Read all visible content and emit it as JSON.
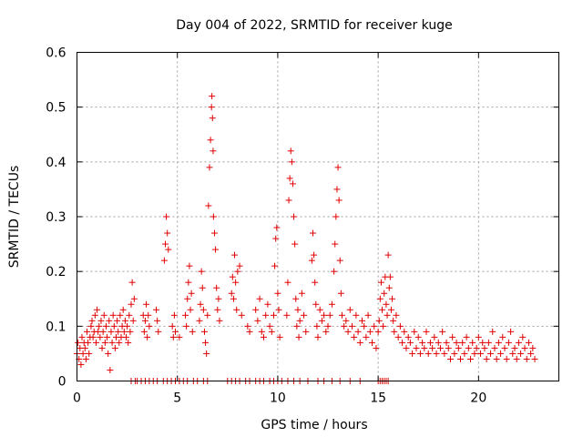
{
  "chart_data": {
    "type": "scatter",
    "title": "Day 004 of 2022, SRMTID for receiver kuge",
    "xlabel": "GPS time / hours",
    "ylabel": "SRMTID / TECUs",
    "xlim": [
      0,
      24
    ],
    "ylim": [
      0,
      0.6
    ],
    "xticks": [
      0,
      5,
      10,
      15,
      20
    ],
    "yticks": [
      0,
      0.1,
      0.2,
      0.3,
      0.4,
      0.5,
      0.6
    ],
    "xtick_labels": [
      "0",
      "5",
      "10",
      "15",
      "20"
    ],
    "ytick_labels": [
      "0",
      "0.1",
      "0.2",
      "0.3",
      "0.4",
      "0.5",
      "0.6"
    ],
    "grid": true,
    "marker": "+",
    "series": [
      {
        "name": "SRMTID",
        "color": "#e00000",
        "points": [
          [
            0.0,
            0.05
          ],
          [
            0.05,
            0.07
          ],
          [
            0.1,
            0.04
          ],
          [
            0.15,
            0.06
          ],
          [
            0.2,
            0.03
          ],
          [
            0.25,
            0.08
          ],
          [
            0.3,
            0.05
          ],
          [
            0.35,
            0.07
          ],
          [
            0.4,
            0.06
          ],
          [
            0.45,
            0.04
          ],
          [
            0.5,
            0.09
          ],
          [
            0.55,
            0.07
          ],
          [
            0.6,
            0.05
          ],
          [
            0.65,
            0.08
          ],
          [
            0.7,
            0.1
          ],
          [
            0.75,
            0.11
          ],
          [
            0.8,
            0.08
          ],
          [
            0.85,
            0.09
          ],
          [
            0.9,
            0.12
          ],
          [
            0.95,
            0.07
          ],
          [
            1.0,
            0.13
          ],
          [
            1.05,
            0.09
          ],
          [
            1.1,
            0.1
          ],
          [
            1.15,
            0.08
          ],
          [
            1.2,
            0.11
          ],
          [
            1.25,
            0.06
          ],
          [
            1.3,
            0.09
          ],
          [
            1.35,
            0.12
          ],
          [
            1.4,
            0.07
          ],
          [
            1.45,
            0.1
          ],
          [
            1.5,
            0.08
          ],
          [
            1.55,
            0.05
          ],
          [
            1.6,
            0.11
          ],
          [
            1.65,
            0.02
          ],
          [
            1.7,
            0.09
          ],
          [
            1.75,
            0.07
          ],
          [
            1.8,
            0.12
          ],
          [
            1.85,
            0.1
          ],
          [
            1.9,
            0.06
          ],
          [
            1.95,
            0.08
          ],
          [
            2.0,
            0.11
          ],
          [
            2.05,
            0.09
          ],
          [
            2.1,
            0.07
          ],
          [
            2.15,
            0.12
          ],
          [
            2.2,
            0.08
          ],
          [
            2.25,
            0.1
          ],
          [
            2.3,
            0.13
          ],
          [
            2.35,
            0.09
          ],
          [
            2.4,
            0.11
          ],
          [
            2.45,
            0.08
          ],
          [
            2.5,
            0.1
          ],
          [
            2.55,
            0.07
          ],
          [
            2.6,
            0.12
          ],
          [
            2.65,
            0.09
          ],
          [
            2.7,
            0.14
          ],
          [
            2.75,
            0.18
          ],
          [
            2.8,
            0.11
          ],
          [
            2.85,
            0.15
          ],
          [
            3.3,
            0.12
          ],
          [
            3.35,
            0.09
          ],
          [
            3.4,
            0.11
          ],
          [
            3.45,
            0.14
          ],
          [
            3.5,
            0.08
          ],
          [
            3.55,
            0.12
          ],
          [
            3.6,
            0.1
          ],
          [
            3.95,
            0.13
          ],
          [
            4.0,
            0.11
          ],
          [
            4.05,
            0.09
          ],
          [
            4.35,
            0.22
          ],
          [
            4.4,
            0.25
          ],
          [
            4.45,
            0.3
          ],
          [
            4.5,
            0.27
          ],
          [
            4.55,
            0.24
          ],
          [
            4.75,
            0.1
          ],
          [
            4.8,
            0.08
          ],
          [
            4.85,
            0.12
          ],
          [
            4.9,
            0.09
          ],
          [
            5.1,
            0.08
          ],
          [
            5.4,
            0.12
          ],
          [
            5.45,
            0.1
          ],
          [
            5.5,
            0.15
          ],
          [
            5.55,
            0.18
          ],
          [
            5.6,
            0.21
          ],
          [
            5.65,
            0.13
          ],
          [
            5.7,
            0.16
          ],
          [
            5.75,
            0.09
          ],
          [
            6.1,
            0.11
          ],
          [
            6.15,
            0.14
          ],
          [
            6.2,
            0.2
          ],
          [
            6.25,
            0.17
          ],
          [
            6.3,
            0.13
          ],
          [
            6.35,
            0.09
          ],
          [
            6.4,
            0.07
          ],
          [
            6.45,
            0.05
          ],
          [
            6.5,
            0.12
          ],
          [
            6.55,
            0.32
          ],
          [
            6.6,
            0.39
          ],
          [
            6.65,
            0.44
          ],
          [
            6.7,
            0.5
          ],
          [
            6.72,
            0.52
          ],
          [
            6.75,
            0.48
          ],
          [
            6.78,
            0.42
          ],
          [
            6.8,
            0.3
          ],
          [
            6.85,
            0.27
          ],
          [
            6.9,
            0.24
          ],
          [
            6.95,
            0.17
          ],
          [
            7.0,
            0.13
          ],
          [
            7.05,
            0.15
          ],
          [
            7.1,
            0.11
          ],
          [
            7.7,
            0.16
          ],
          [
            7.75,
            0.19
          ],
          [
            7.8,
            0.15
          ],
          [
            7.85,
            0.23
          ],
          [
            7.9,
            0.18
          ],
          [
            7.95,
            0.13
          ],
          [
            8.0,
            0.2
          ],
          [
            8.1,
            0.21
          ],
          [
            8.2,
            0.12
          ],
          [
            8.5,
            0.1
          ],
          [
            8.6,
            0.09
          ],
          [
            8.9,
            0.13
          ],
          [
            9.0,
            0.11
          ],
          [
            9.1,
            0.15
          ],
          [
            9.2,
            0.09
          ],
          [
            9.3,
            0.08
          ],
          [
            9.4,
            0.12
          ],
          [
            9.5,
            0.14
          ],
          [
            9.6,
            0.1
          ],
          [
            9.7,
            0.09
          ],
          [
            9.8,
            0.12
          ],
          [
            9.85,
            0.21
          ],
          [
            9.9,
            0.26
          ],
          [
            9.95,
            0.28
          ],
          [
            10.0,
            0.16
          ],
          [
            10.05,
            0.13
          ],
          [
            10.1,
            0.08
          ],
          [
            10.45,
            0.12
          ],
          [
            10.5,
            0.18
          ],
          [
            10.55,
            0.33
          ],
          [
            10.6,
            0.37
          ],
          [
            10.65,
            0.42
          ],
          [
            10.7,
            0.4
          ],
          [
            10.75,
            0.36
          ],
          [
            10.8,
            0.3
          ],
          [
            10.85,
            0.25
          ],
          [
            10.9,
            0.15
          ],
          [
            10.95,
            0.1
          ],
          [
            11.0,
            0.13
          ],
          [
            11.05,
            0.08
          ],
          [
            11.1,
            0.11
          ],
          [
            11.2,
            0.16
          ],
          [
            11.3,
            0.12
          ],
          [
            11.4,
            0.09
          ],
          [
            11.7,
            0.22
          ],
          [
            11.75,
            0.27
          ],
          [
            11.8,
            0.23
          ],
          [
            11.85,
            0.18
          ],
          [
            11.9,
            0.14
          ],
          [
            11.95,
            0.1
          ],
          [
            12.0,
            0.08
          ],
          [
            12.1,
            0.13
          ],
          [
            12.2,
            0.11
          ],
          [
            12.3,
            0.12
          ],
          [
            12.4,
            0.09
          ],
          [
            12.5,
            0.1
          ],
          [
            12.6,
            0.12
          ],
          [
            12.7,
            0.14
          ],
          [
            12.8,
            0.2
          ],
          [
            12.85,
            0.25
          ],
          [
            12.9,
            0.3
          ],
          [
            12.95,
            0.35
          ],
          [
            13.0,
            0.39
          ],
          [
            13.05,
            0.33
          ],
          [
            13.1,
            0.22
          ],
          [
            13.15,
            0.16
          ],
          [
            13.2,
            0.12
          ],
          [
            13.3,
            0.1
          ],
          [
            13.4,
            0.11
          ],
          [
            13.5,
            0.09
          ],
          [
            13.6,
            0.13
          ],
          [
            13.7,
            0.1
          ],
          [
            13.8,
            0.08
          ],
          [
            13.9,
            0.12
          ],
          [
            14.0,
            0.09
          ],
          [
            14.1,
            0.07
          ],
          [
            14.2,
            0.11
          ],
          [
            14.3,
            0.1
          ],
          [
            14.4,
            0.08
          ],
          [
            14.5,
            0.12
          ],
          [
            14.6,
            0.09
          ],
          [
            14.7,
            0.07
          ],
          [
            14.8,
            0.1
          ],
          [
            14.9,
            0.06
          ],
          [
            15.0,
            0.09
          ],
          [
            15.05,
            0.11
          ],
          [
            15.1,
            0.15
          ],
          [
            15.15,
            0.18
          ],
          [
            15.2,
            0.13
          ],
          [
            15.25,
            0.1
          ],
          [
            15.3,
            0.16
          ],
          [
            15.35,
            0.19
          ],
          [
            15.4,
            0.14
          ],
          [
            15.45,
            0.12
          ],
          [
            15.5,
            0.23
          ],
          [
            15.55,
            0.17
          ],
          [
            15.6,
            0.19
          ],
          [
            15.65,
            0.13
          ],
          [
            15.7,
            0.15
          ],
          [
            15.75,
            0.11
          ],
          [
            15.8,
            0.09
          ],
          [
            15.9,
            0.12
          ],
          [
            16.0,
            0.08
          ],
          [
            16.1,
            0.1
          ],
          [
            16.2,
            0.07
          ],
          [
            16.3,
            0.09
          ],
          [
            16.4,
            0.06
          ],
          [
            16.5,
            0.08
          ],
          [
            16.6,
            0.07
          ],
          [
            16.7,
            0.05
          ],
          [
            16.8,
            0.09
          ],
          [
            16.9,
            0.06
          ],
          [
            17.0,
            0.08
          ],
          [
            17.1,
            0.05
          ],
          [
            17.2,
            0.07
          ],
          [
            17.3,
            0.06
          ],
          [
            17.4,
            0.09
          ],
          [
            17.5,
            0.05
          ],
          [
            17.6,
            0.07
          ],
          [
            17.7,
            0.06
          ],
          [
            17.8,
            0.08
          ],
          [
            17.9,
            0.05
          ],
          [
            18.0,
            0.07
          ],
          [
            18.1,
            0.06
          ],
          [
            18.2,
            0.09
          ],
          [
            18.3,
            0.05
          ],
          [
            18.4,
            0.07
          ],
          [
            18.5,
            0.06
          ],
          [
            18.6,
            0.04
          ],
          [
            18.7,
            0.08
          ],
          [
            18.8,
            0.05
          ],
          [
            18.9,
            0.07
          ],
          [
            19.0,
            0.06
          ],
          [
            19.1,
            0.04
          ],
          [
            19.2,
            0.07
          ],
          [
            19.3,
            0.05
          ],
          [
            19.4,
            0.08
          ],
          [
            19.5,
            0.06
          ],
          [
            19.6,
            0.04
          ],
          [
            19.7,
            0.07
          ],
          [
            19.8,
            0.05
          ],
          [
            19.9,
            0.06
          ],
          [
            20.0,
            0.08
          ],
          [
            20.1,
            0.05
          ],
          [
            20.2,
            0.07
          ],
          [
            20.3,
            0.06
          ],
          [
            20.4,
            0.04
          ],
          [
            20.5,
            0.07
          ],
          [
            20.6,
            0.05
          ],
          [
            20.7,
            0.09
          ],
          [
            20.8,
            0.06
          ],
          [
            20.9,
            0.04
          ],
          [
            21.0,
            0.07
          ],
          [
            21.1,
            0.05
          ],
          [
            21.2,
            0.08
          ],
          [
            21.3,
            0.06
          ],
          [
            21.4,
            0.04
          ],
          [
            21.5,
            0.07
          ],
          [
            21.6,
            0.09
          ],
          [
            21.7,
            0.05
          ],
          [
            21.8,
            0.06
          ],
          [
            21.9,
            0.04
          ],
          [
            22.0,
            0.07
          ],
          [
            22.1,
            0.05
          ],
          [
            22.2,
            0.08
          ],
          [
            22.3,
            0.06
          ],
          [
            22.4,
            0.04
          ],
          [
            22.5,
            0.07
          ],
          [
            22.6,
            0.05
          ],
          [
            22.7,
            0.06
          ],
          [
            22.8,
            0.04
          ]
        ],
        "zero_points_x": [
          2.7,
          2.9,
          3.0,
          3.2,
          3.4,
          3.6,
          3.8,
          4.0,
          4.3,
          4.5,
          4.7,
          4.9,
          5.1,
          5.3,
          5.5,
          5.8,
          6.0,
          6.3,
          6.5,
          7.5,
          7.7,
          7.9,
          8.1,
          8.4,
          8.6,
          8.9,
          9.1,
          9.3,
          9.6,
          9.8,
          10.0,
          10.2,
          10.5,
          10.8,
          11.1,
          11.5,
          12.0,
          12.3,
          12.7,
          13.1,
          13.6,
          14.1,
          15.0,
          15.1,
          15.2,
          15.3,
          15.4,
          15.5
        ]
      }
    ]
  }
}
